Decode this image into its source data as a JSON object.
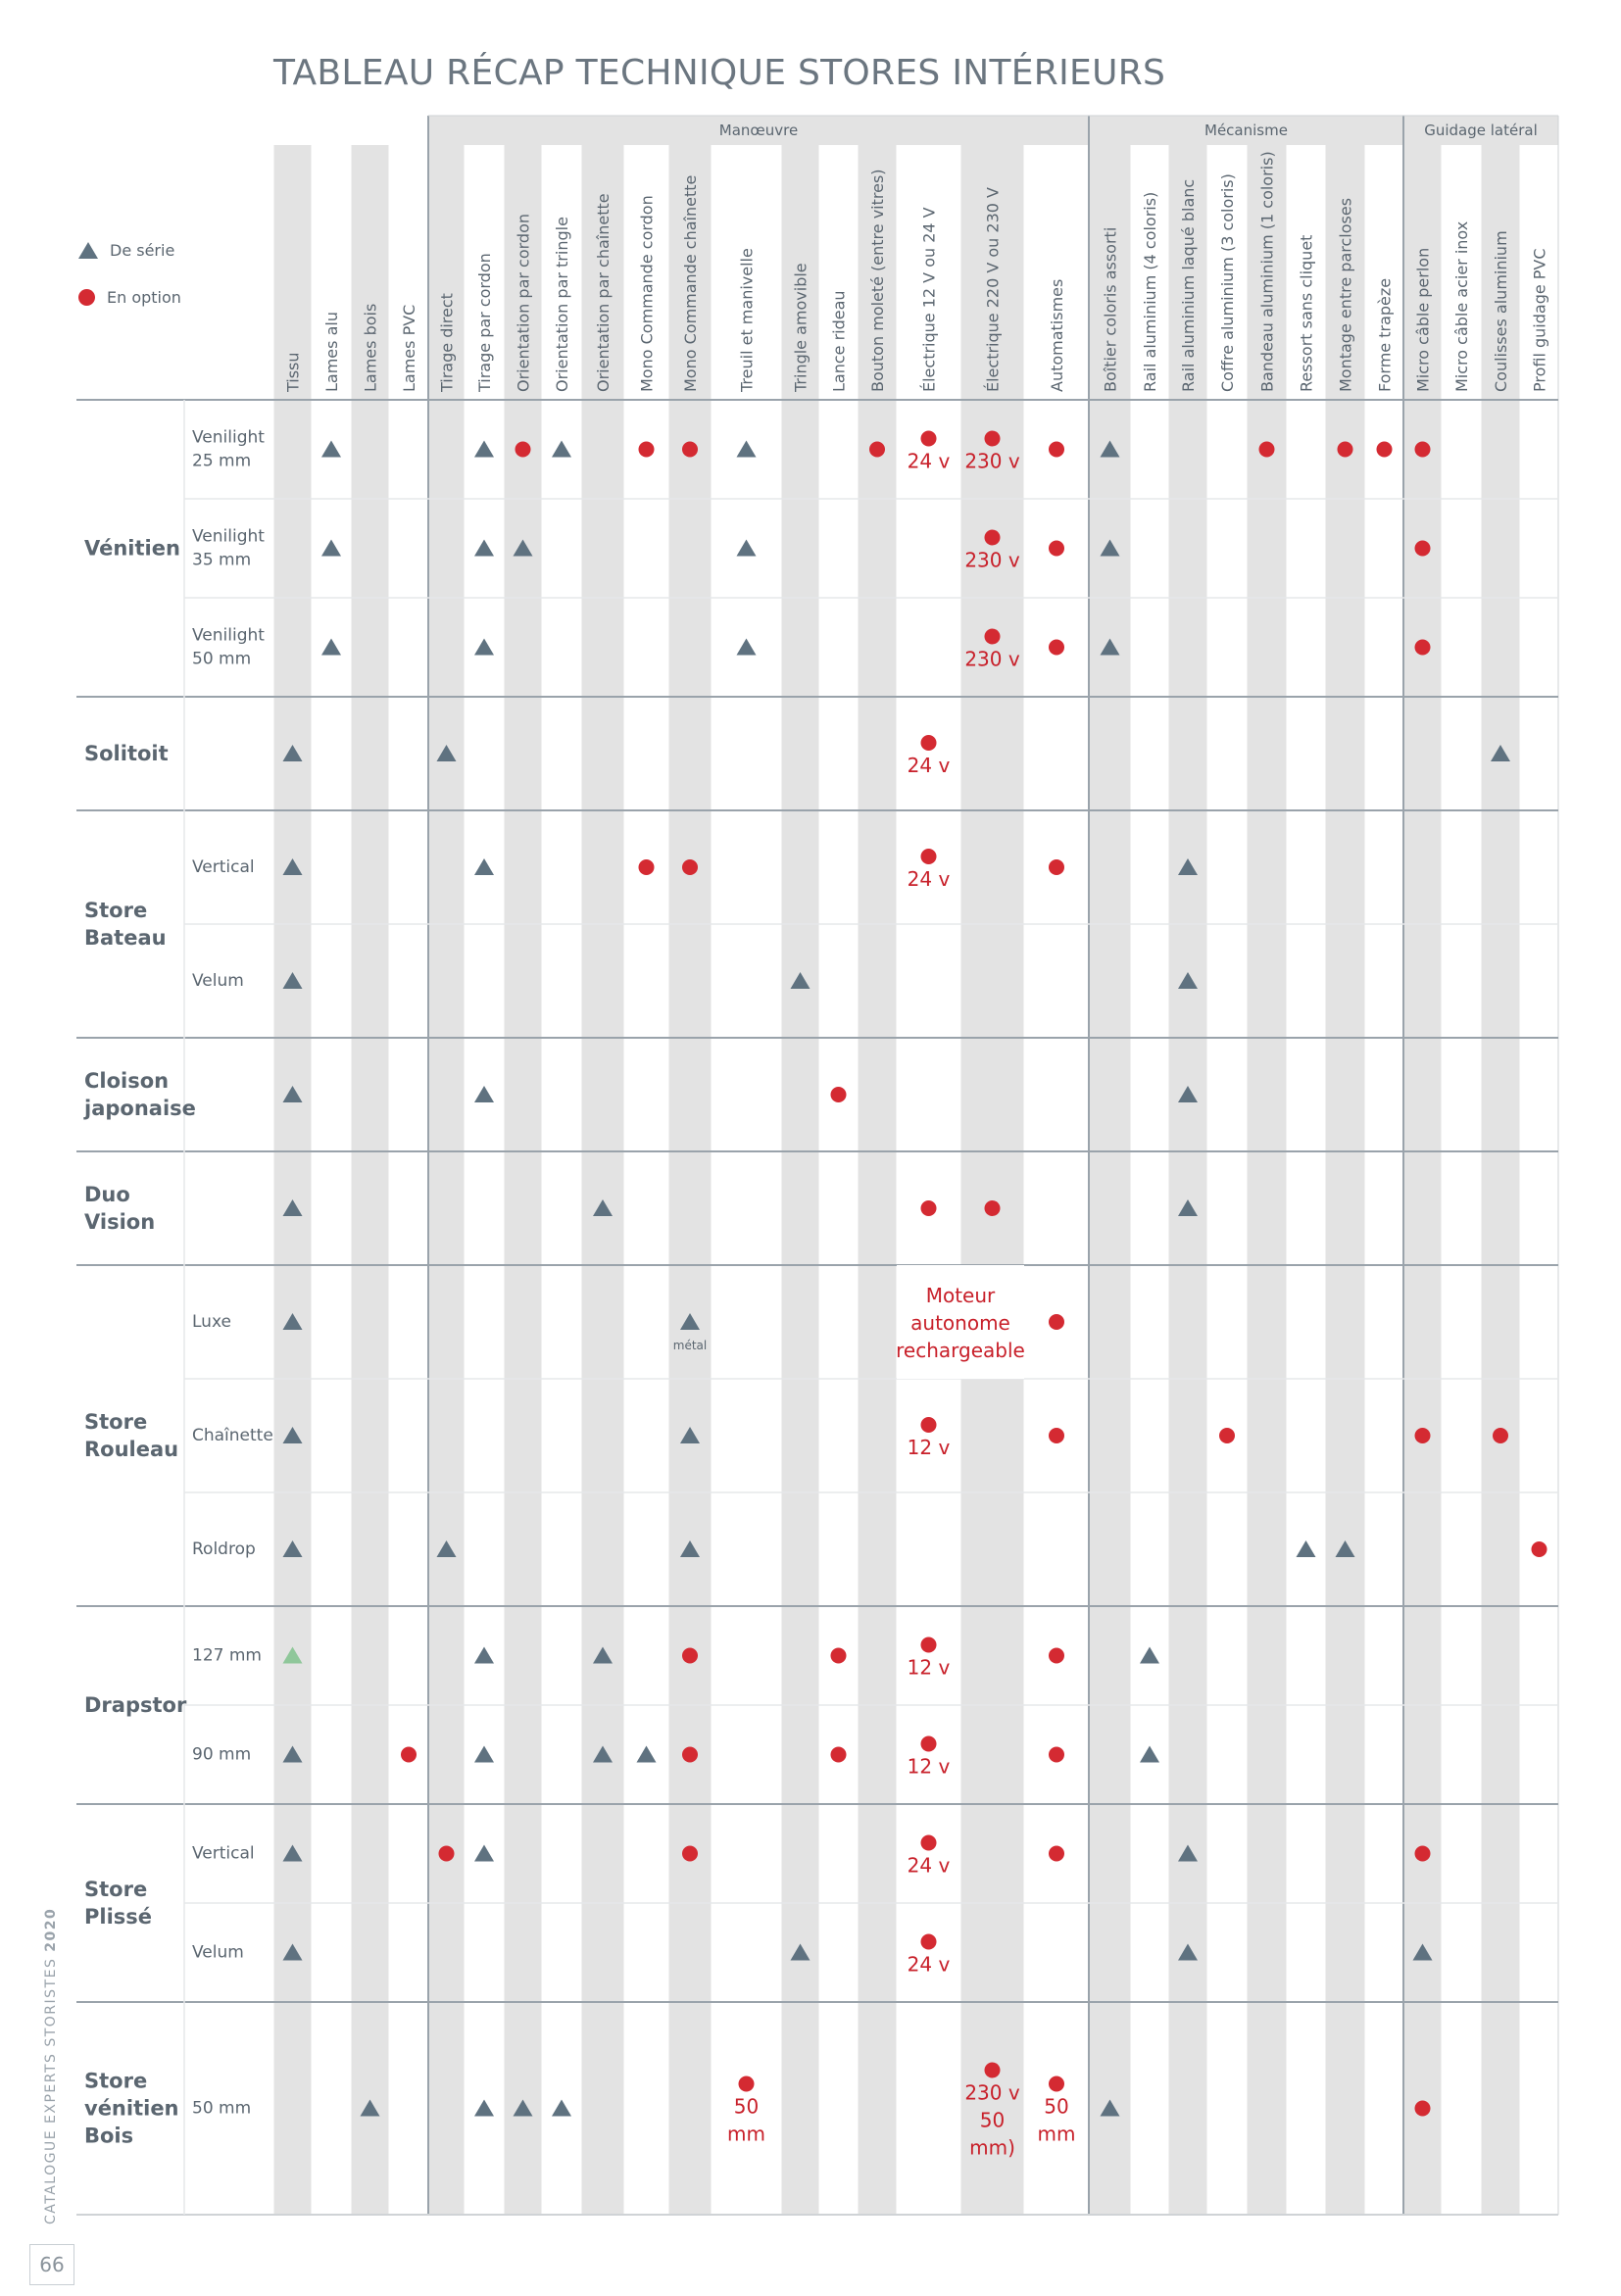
{
  "title": "TABLEAU RÉCAP TECHNIQUE STORES INTÉRIEURS",
  "legend": [
    {
      "icon": "triangle",
      "label": "De série"
    },
    {
      "icon": "dot",
      "label": "En option"
    }
  ],
  "groups": [
    "Manœuvre",
    "Mécanisme",
    "Guidage latéral"
  ],
  "columns": [
    "Tissu",
    "Lames alu",
    "Lames bois",
    "Lames PVC",
    "Tirage direct",
    "Tirage par cordon",
    "Orientation par cordon",
    "Orientation par tringle",
    "Orientation par chaînette",
    "Mono Commande cordon",
    "Mono Commande chaînette",
    "Treuil et manivelle",
    "Tringle amovible",
    "Lance rideau",
    "Bouton moleté (entre vitres)",
    "Électrique 12 V ou 24 V",
    "Électrique 220 V ou 230 V",
    "Automatismes",
    "Boîtier coloris assorti",
    "Rail aluminium (4 coloris)",
    "Rail aluminium laqué blanc",
    "Coffre aluminium (3 coloris)",
    "Bandeau aluminium (1 coloris)",
    "Ressort sans cliquet",
    "Montage entre parcloses",
    "Forme trapèze",
    "Micro câble perlon",
    "Micro câble acier inox",
    "Coulisses aluminium",
    "Profil guidage PVC"
  ],
  "products": [
    {
      "name": "Vénitien",
      "rows": [
        {
          "label": "Venilight 25 mm",
          "cells": {
            "1": "t",
            "5": "t",
            "6": "d",
            "7": "t",
            "9": "d",
            "10": "d",
            "11": "t",
            "14": "d",
            "15": "d|24 v",
            "16": "d|230 v",
            "17": "d",
            "18": "t",
            "22": "d",
            "24": "d",
            "25": "d",
            "26": "d"
          }
        },
        {
          "label": "Venilight 35 mm",
          "cells": {
            "1": "t",
            "5": "t",
            "6": "t",
            "11": "t",
            "16": "d|230 v",
            "17": "d",
            "18": "t",
            "26": "d"
          }
        },
        {
          "label": "Venilight 50 mm",
          "cells": {
            "1": "t",
            "5": "t",
            "11": "t",
            "16": "d|230 v",
            "17": "d",
            "18": "t",
            "26": "d"
          }
        }
      ]
    },
    {
      "name": "Solitoit",
      "rows": [
        {
          "label": "",
          "cells": {
            "0": "t",
            "4": "t",
            "15": "d|24 v",
            "28": "t"
          }
        }
      ]
    },
    {
      "name": "Store Bateau",
      "rows": [
        {
          "label": "Vertical",
          "cells": {
            "0": "t",
            "5": "t",
            "9": "d",
            "10": "d",
            "15": "d|24 v",
            "17": "d",
            "20": "t"
          }
        },
        {
          "label": "Velum",
          "cells": {
            "0": "t",
            "12": "t",
            "20": "t"
          }
        }
      ]
    },
    {
      "name": "Cloison japonaise",
      "rows": [
        {
          "label": "",
          "cells": {
            "0": "t",
            "5": "t",
            "13": "d",
            "20": "t"
          }
        }
      ]
    },
    {
      "name": "Duo Vision",
      "rows": [
        {
          "label": "",
          "cells": {
            "0": "t",
            "8": "t",
            "15": "d",
            "16": "d",
            "20": "t"
          }
        }
      ]
    },
    {
      "name": "Store Rouleau",
      "rows": [
        {
          "label": "Luxe",
          "cells": {
            "0": "t",
            "10": "t|métal",
            "17": "d"
          },
          "note": "Moteur autonome rechargeable"
        },
        {
          "label": "Chaînette",
          "cells": {
            "0": "t",
            "10": "t",
            "15": "d|12 v",
            "17": "d",
            "21": "d",
            "26": "d",
            "28": "d"
          }
        },
        {
          "label": "Roldrop",
          "cells": {
            "0": "t",
            "4": "t",
            "10": "t",
            "23": "t",
            "24": "t",
            "29": "d"
          }
        }
      ]
    },
    {
      "name": "Drapstor",
      "rows": [
        {
          "label": "127 mm",
          "cells": {
            "0": "g",
            "5": "t",
            "8": "t",
            "10": "d",
            "13": "d",
            "15": "d|12 v",
            "17": "d",
            "19": "t"
          }
        },
        {
          "label": "90 mm",
          "cells": {
            "0": "t",
            "3": "d",
            "5": "t",
            "8": "t",
            "9": "t",
            "10": "d",
            "13": "d",
            "15": "d|12 v",
            "17": "d",
            "19": "t"
          }
        }
      ]
    },
    {
      "name": "Store Plissé",
      "rows": [
        {
          "label": "Vertical",
          "cells": {
            "0": "t",
            "4": "d",
            "5": "t",
            "10": "d",
            "15": "d|24 v",
            "17": "d",
            "20": "t",
            "26": "d"
          }
        },
        {
          "label": "Velum",
          "cells": {
            "0": "t",
            "12": "t",
            "15": "d|24 v",
            "20": "t",
            "26": "t"
          }
        }
      ]
    },
    {
      "name": "Store vénitien Bois",
      "rows": [
        {
          "label": "50 mm",
          "cells": {
            "2": "t",
            "5": "t",
            "6": "t",
            "7": "t",
            "11": "d|50 mm",
            "16": "d|230 v 50 mm)",
            "17": "d|50 mm",
            "18": "t",
            "26": "d"
          }
        }
      ]
    }
  ],
  "side_caption": {
    "prefix": "CATALOGUE EXPERTS STORISTES",
    "year": "2020"
  },
  "page_number": "66",
  "colors": {
    "triangle": "#5f7280",
    "dot": "#d42a32",
    "triangle_alt": "#8fc79a",
    "shade": "#e3e3e3",
    "line": "#9aa3ab",
    "text": "#5b6670",
    "red_text": "#c8202a"
  }
}
